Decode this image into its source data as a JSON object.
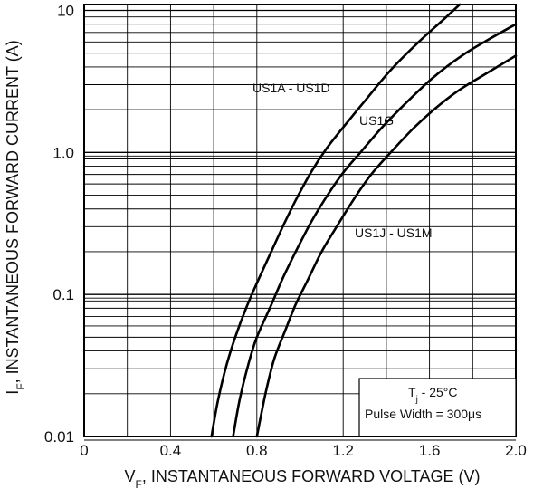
{
  "chart_data": {
    "type": "line",
    "xscale": "linear",
    "yscale": "log",
    "xlim": [
      0,
      2.0
    ],
    "ylim": [
      0.01,
      11
    ],
    "xticks": [
      "0",
      "0.4",
      "0.8",
      "1.2",
      "1.6",
      "2.0"
    ],
    "yticks": [
      "0.01",
      "0.1",
      "1.0",
      "10"
    ],
    "xlabel_main": "V",
    "xlabel_sub": "F",
    "xlabel_rest": ", INSTANTANEOUS FORWARD VOLTAGE (V)",
    "ylabel_main": "I",
    "ylabel_sub": "F",
    "ylabel_rest": ", INSTANTANEOUS FORWARD CURRENT (A)",
    "grid": true,
    "series": [
      {
        "name": "US1A - US1D",
        "x": [
          0.59,
          0.62,
          0.66,
          0.7,
          0.75,
          0.8,
          0.86,
          0.92,
          0.98,
          1.05,
          1.12,
          1.2,
          1.3,
          1.42,
          1.55,
          1.66,
          1.74
        ],
        "y": [
          0.01,
          0.018,
          0.032,
          0.05,
          0.08,
          0.12,
          0.19,
          0.3,
          0.46,
          0.72,
          1.05,
          1.5,
          2.3,
          3.8,
          6.0,
          8.5,
          11
        ]
      },
      {
        "name": "US1G",
        "x": [
          0.69,
          0.72,
          0.76,
          0.8,
          0.86,
          0.92,
          0.98,
          1.05,
          1.12,
          1.2,
          1.28,
          1.38,
          1.5,
          1.62,
          1.75,
          1.87,
          2.0
        ],
        "y": [
          0.01,
          0.018,
          0.032,
          0.05,
          0.08,
          0.13,
          0.2,
          0.32,
          0.48,
          0.72,
          1.0,
          1.5,
          2.3,
          3.4,
          4.8,
          6.2,
          8.0
        ]
      },
      {
        "name": "US1J - US1M",
        "x": [
          0.8,
          0.84,
          0.88,
          0.93,
          0.98,
          1.04,
          1.1,
          1.17,
          1.25,
          1.33,
          1.42,
          1.52,
          1.62,
          1.73,
          1.85,
          2.0
        ],
        "y": [
          0.01,
          0.02,
          0.035,
          0.055,
          0.085,
          0.13,
          0.2,
          0.3,
          0.47,
          0.7,
          1.0,
          1.45,
          2.0,
          2.7,
          3.5,
          4.8
        ]
      }
    ],
    "series_labels": [
      "US1A - US1D",
      "US1G",
      "US1J - US1M"
    ],
    "note_line1_main": "T",
    "note_line1_sub": "j",
    "note_line1_rest": " - 25°C",
    "note_line2": "Pulse Width = 300μs"
  }
}
